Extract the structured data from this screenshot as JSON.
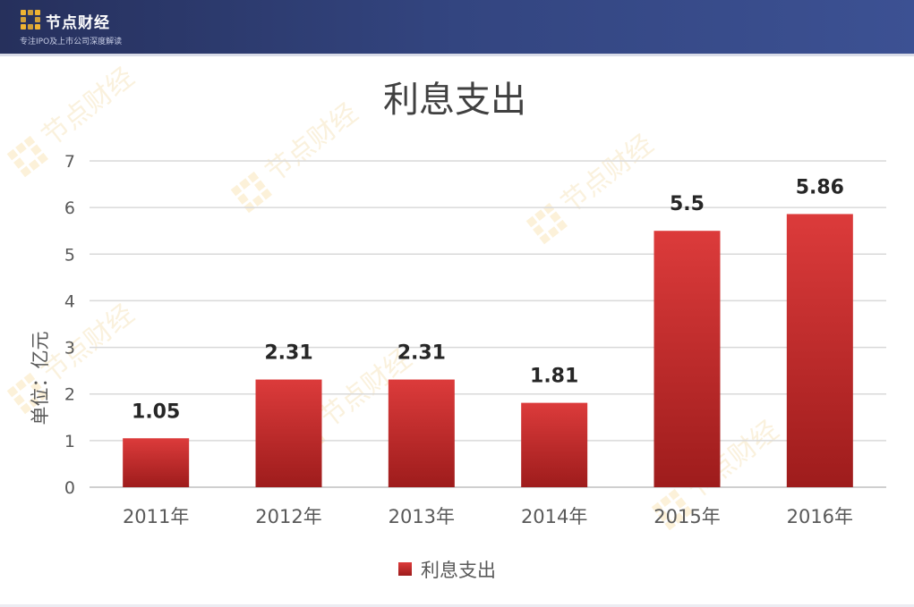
{
  "header": {
    "brand_name": "节点财经",
    "tagline": "专注IPO及上市公司深度解读",
    "watermark_text": "节点财经"
  },
  "colors": {
    "header_bg": "#2e3a6e",
    "bar_top": "#dc3b3b",
    "bar_bottom": "#9e1c1c",
    "grid": "#d9d9d9",
    "text": "#404040",
    "logo_gold": "#f0b432"
  },
  "chart_data": {
    "type": "bar",
    "title": "利息支出",
    "ylabel": "单位：亿元",
    "xlabel": "",
    "categories": [
      "2011年",
      "2012年",
      "2013年",
      "2014年",
      "2015年",
      "2016年"
    ],
    "series": [
      {
        "name": "利息支出",
        "values": [
          1.05,
          2.31,
          2.31,
          1.81,
          5.5,
          5.86
        ]
      }
    ],
    "data_labels": [
      "1.05",
      "2.31",
      "2.31",
      "1.81",
      "5.5",
      "5.86"
    ],
    "ylim": [
      0,
      7
    ],
    "yticks": [
      0,
      1,
      2,
      3,
      4,
      5,
      6,
      7
    ],
    "grid": true,
    "legend_position": "bottom"
  }
}
